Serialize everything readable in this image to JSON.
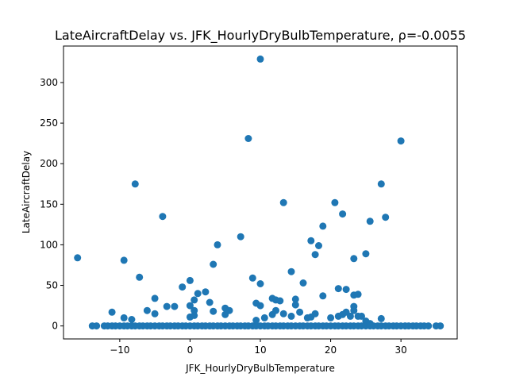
{
  "chart_data": {
    "type": "scatter",
    "title": "LateAircraftDelay vs. JFK_HourlyDryBulbTemperature, ρ=-0.0055",
    "xlabel": "JFK_HourlyDryBulbTemperature",
    "ylabel": "LateAircraftDelay",
    "xlim": [
      -18.0,
      38.0
    ],
    "ylim": [
      -16.0,
      345.0
    ],
    "xticks": [
      -10,
      0,
      10,
      20,
      30
    ],
    "yticks": [
      0,
      50,
      100,
      150,
      200,
      250,
      300
    ],
    "marker_color": "#1f77b4",
    "points": [
      [
        -16.0,
        84
      ],
      [
        -13.9,
        0
      ],
      [
        -13.3,
        0
      ],
      [
        -12.2,
        0
      ],
      [
        -11.7,
        0
      ],
      [
        -11.1,
        0
      ],
      [
        -11.1,
        17
      ],
      [
        -10.6,
        0
      ],
      [
        -10.0,
        0
      ],
      [
        -9.4,
        0
      ],
      [
        -9.4,
        81
      ],
      [
        -9.4,
        10
      ],
      [
        -8.9,
        0
      ],
      [
        -8.3,
        0
      ],
      [
        -8.3,
        8
      ],
      [
        -7.8,
        175
      ],
      [
        -7.8,
        0
      ],
      [
        -7.2,
        60
      ],
      [
        -7.2,
        0
      ],
      [
        -6.7,
        0
      ],
      [
        -6.1,
        0
      ],
      [
        -6.1,
        19
      ],
      [
        -5.6,
        0
      ],
      [
        -5.0,
        0
      ],
      [
        -5.0,
        34
      ],
      [
        -5.0,
        15
      ],
      [
        -4.4,
        0
      ],
      [
        -3.9,
        135
      ],
      [
        -3.9,
        0
      ],
      [
        -3.3,
        0
      ],
      [
        -3.3,
        24
      ],
      [
        -2.8,
        0
      ],
      [
        -2.2,
        0
      ],
      [
        -2.2,
        24
      ],
      [
        -1.7,
        0
      ],
      [
        -1.1,
        0
      ],
      [
        -1.1,
        48
      ],
      [
        -0.6,
        0
      ],
      [
        0.0,
        0
      ],
      [
        0.0,
        56
      ],
      [
        0.0,
        25
      ],
      [
        0.0,
        11
      ],
      [
        0.6,
        0
      ],
      [
        0.6,
        32
      ],
      [
        0.6,
        19
      ],
      [
        0.6,
        13
      ],
      [
        1.1,
        0
      ],
      [
        1.1,
        40
      ],
      [
        1.7,
        0
      ],
      [
        2.2,
        42
      ],
      [
        2.2,
        0
      ],
      [
        2.8,
        0
      ],
      [
        2.8,
        29
      ],
      [
        3.3,
        76
      ],
      [
        3.3,
        0
      ],
      [
        3.3,
        18
      ],
      [
        3.9,
        100
      ],
      [
        3.9,
        0
      ],
      [
        4.4,
        0
      ],
      [
        5.0,
        0
      ],
      [
        5.0,
        22
      ],
      [
        5.0,
        14
      ],
      [
        5.6,
        0
      ],
      [
        5.6,
        19
      ],
      [
        6.1,
        0
      ],
      [
        6.7,
        0
      ],
      [
        7.2,
        110
      ],
      [
        7.2,
        0
      ],
      [
        7.8,
        0
      ],
      [
        8.3,
        231
      ],
      [
        8.3,
        0
      ],
      [
        8.9,
        59
      ],
      [
        8.9,
        0
      ],
      [
        9.4,
        28
      ],
      [
        9.4,
        0
      ],
      [
        9.4,
        7
      ],
      [
        10.0,
        329
      ],
      [
        10.0,
        52
      ],
      [
        10.0,
        25
      ],
      [
        10.0,
        0
      ],
      [
        10.6,
        10
      ],
      [
        10.6,
        0
      ],
      [
        11.1,
        0
      ],
      [
        11.7,
        34
      ],
      [
        11.7,
        0
      ],
      [
        11.7,
        14
      ],
      [
        12.2,
        32
      ],
      [
        12.2,
        19
      ],
      [
        12.2,
        0
      ],
      [
        12.8,
        31
      ],
      [
        12.8,
        0
      ],
      [
        13.3,
        152
      ],
      [
        13.3,
        15
      ],
      [
        13.3,
        0
      ],
      [
        13.9,
        0
      ],
      [
        14.4,
        67
      ],
      [
        14.4,
        12
      ],
      [
        14.4,
        0
      ],
      [
        15.0,
        33
      ],
      [
        15.0,
        26
      ],
      [
        15.0,
        0
      ],
      [
        15.6,
        17
      ],
      [
        15.6,
        0
      ],
      [
        16.1,
        53
      ],
      [
        16.1,
        0
      ],
      [
        16.7,
        10
      ],
      [
        16.7,
        0
      ],
      [
        17.2,
        105
      ],
      [
        17.2,
        11
      ],
      [
        17.2,
        0
      ],
      [
        17.8,
        88
      ],
      [
        17.8,
        15
      ],
      [
        17.8,
        0
      ],
      [
        18.3,
        99
      ],
      [
        18.3,
        0
      ],
      [
        18.9,
        123
      ],
      [
        18.9,
        37
      ],
      [
        18.9,
        0
      ],
      [
        19.4,
        0
      ],
      [
        20.0,
        10
      ],
      [
        20.0,
        0
      ],
      [
        20.6,
        152
      ],
      [
        20.6,
        0
      ],
      [
        21.1,
        46
      ],
      [
        21.1,
        12
      ],
      [
        21.1,
        0
      ],
      [
        21.7,
        138
      ],
      [
        21.7,
        14
      ],
      [
        21.7,
        0
      ],
      [
        22.2,
        45
      ],
      [
        22.2,
        17
      ],
      [
        22.2,
        0
      ],
      [
        22.8,
        12
      ],
      [
        22.8,
        0
      ],
      [
        23.3,
        83
      ],
      [
        23.3,
        38
      ],
      [
        23.3,
        24
      ],
      [
        23.3,
        19
      ],
      [
        23.3,
        0
      ],
      [
        23.9,
        39
      ],
      [
        23.9,
        12
      ],
      [
        23.9,
        0
      ],
      [
        24.4,
        12
      ],
      [
        24.4,
        0
      ],
      [
        25.0,
        89
      ],
      [
        25.0,
        6
      ],
      [
        25.0,
        0
      ],
      [
        25.6,
        129
      ],
      [
        25.6,
        3
      ],
      [
        25.6,
        0
      ],
      [
        26.1,
        0
      ],
      [
        26.7,
        0
      ],
      [
        27.2,
        175
      ],
      [
        27.2,
        9
      ],
      [
        27.2,
        0
      ],
      [
        27.8,
        134
      ],
      [
        27.8,
        0
      ],
      [
        28.3,
        0
      ],
      [
        28.9,
        0
      ],
      [
        29.4,
        0
      ],
      [
        30.0,
        228
      ],
      [
        30.0,
        0
      ],
      [
        30.6,
        0
      ],
      [
        31.1,
        0
      ],
      [
        31.7,
        0
      ],
      [
        32.2,
        0
      ],
      [
        32.8,
        0
      ],
      [
        33.3,
        0
      ],
      [
        33.9,
        0
      ],
      [
        35.0,
        0
      ],
      [
        35.6,
        0
      ]
    ]
  }
}
